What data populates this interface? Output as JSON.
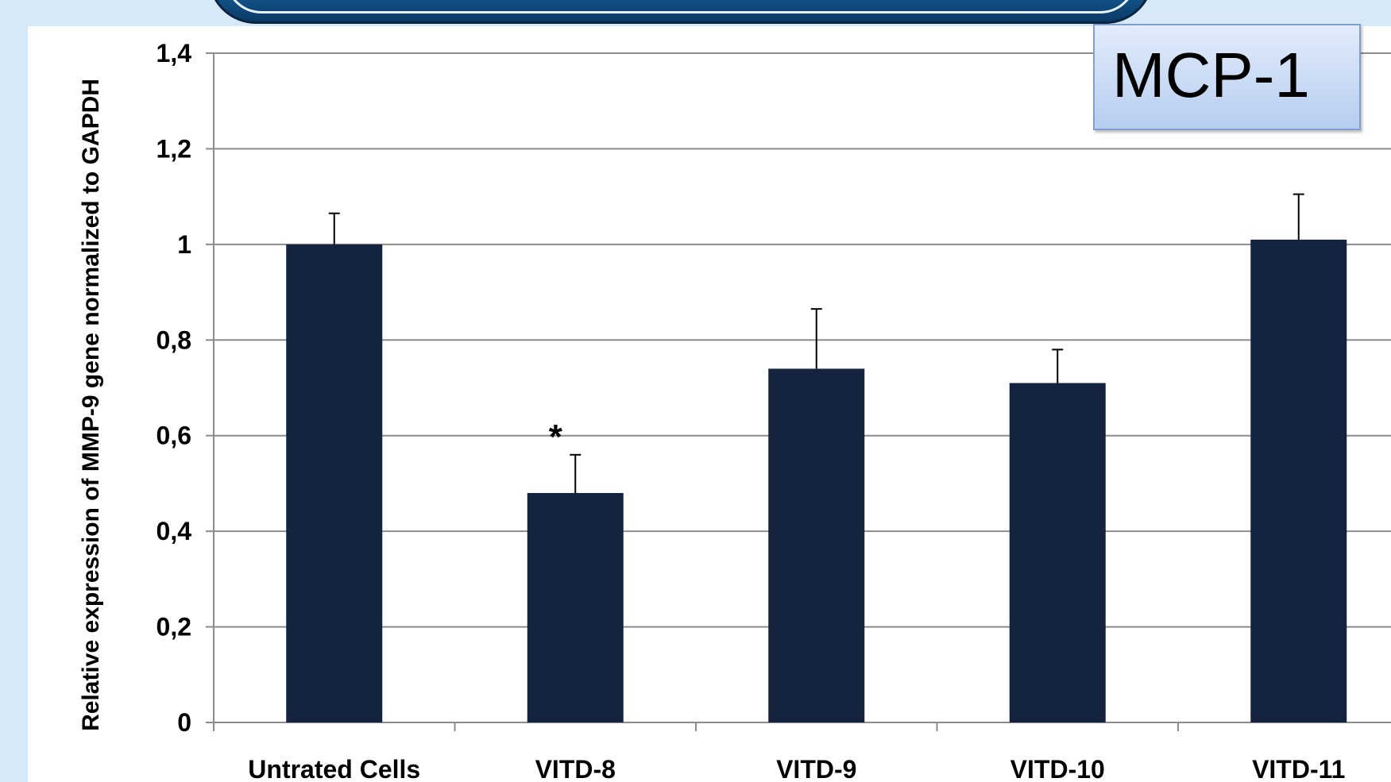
{
  "chart_data": {
    "type": "bar",
    "title": "MCP-1",
    "ylabel": "Relative expression of MMP-9 gene normalized to GAPDH",
    "xlabel": "",
    "categories": [
      "Untrated Cells",
      "VITD-8",
      "VITD-9",
      "VITD-10",
      "VITD-11"
    ],
    "values": [
      1.0,
      0.48,
      0.74,
      0.71,
      1.01
    ],
    "error_bars": [
      0.065,
      0.08,
      0.125,
      0.07,
      0.095
    ],
    "annotations": [
      {
        "category": "VITD-8",
        "text": "*"
      }
    ],
    "ylim": [
      0,
      1.4
    ],
    "yticks": [
      0,
      0.2,
      0.4,
      0.6,
      0.8,
      1,
      1.2,
      1.4
    ],
    "ytick_labels": [
      "0",
      "0,2",
      "0,4",
      "0,6",
      "0,8",
      "1",
      "1,2",
      "1,4"
    ],
    "grid": true,
    "legend": "none",
    "bar_color": "#15243e"
  }
}
